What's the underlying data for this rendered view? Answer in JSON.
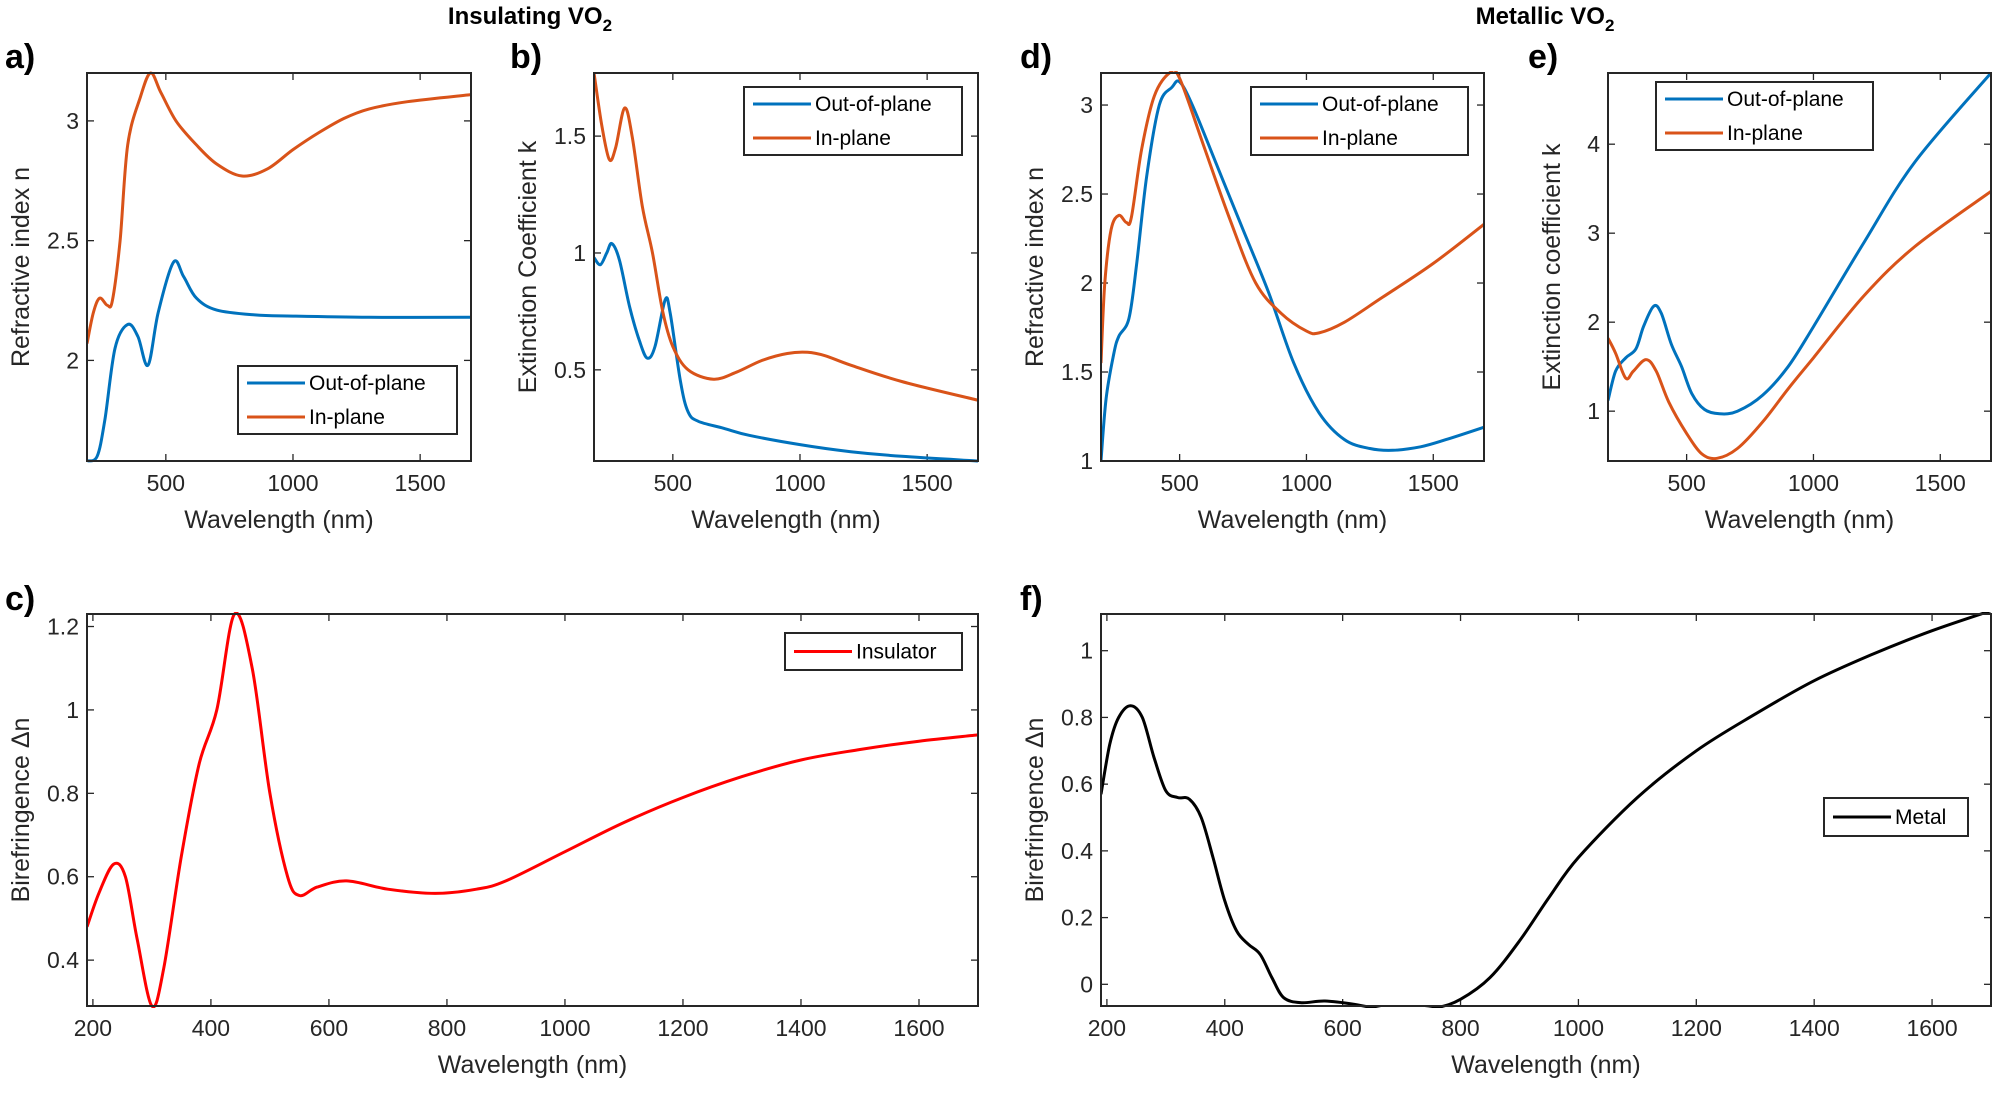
{
  "group_titles": [
    {
      "text": "Insulating VO",
      "sub": "2"
    },
    {
      "text": "Metallic VO",
      "sub": "2"
    }
  ],
  "colors": {
    "out_of_plane": "#0072BD",
    "in_plane": "#D95319",
    "insulator": "#FF0000",
    "metal": "#000000"
  },
  "chart_data": [
    {
      "panel": "a)",
      "type": "line",
      "xlabel": "Wavelength (nm)",
      "ylabel": "Refractive index n",
      "xlim": [
        190,
        1700
      ],
      "ylim": [
        1.58,
        3.2
      ],
      "xticks": [
        500,
        1000,
        1500
      ],
      "xtick_labels": [
        "500",
        "1000",
        "1500"
      ],
      "yticks": [
        2,
        2.5,
        3
      ],
      "ytick_labels": [
        "2",
        "2.5",
        "3"
      ],
      "legend": "bottom-right",
      "grid": false,
      "series": [
        {
          "name": "Out-of-plane",
          "color": "#0072BD",
          "x": [
            190,
            230,
            260,
            300,
            350,
            390,
            430,
            470,
            530,
            570,
            620,
            700,
            850,
            1000,
            1300,
            1700
          ],
          "y": [
            1.58,
            1.6,
            1.75,
            2.05,
            2.15,
            2.1,
            1.98,
            2.2,
            2.41,
            2.35,
            2.26,
            2.21,
            2.19,
            2.185,
            2.18,
            2.18
          ]
        },
        {
          "name": "In-plane",
          "color": "#D95319",
          "x": [
            190,
            215,
            240,
            270,
            290,
            320,
            350,
            400,
            440,
            480,
            540,
            620,
            700,
            800,
            900,
            1000,
            1100,
            1200,
            1300,
            1450,
            1700
          ],
          "y": [
            2.07,
            2.2,
            2.26,
            2.23,
            2.25,
            2.5,
            2.9,
            3.1,
            3.2,
            3.12,
            3.0,
            2.9,
            2.82,
            2.77,
            2.8,
            2.88,
            2.95,
            3.01,
            3.05,
            3.08,
            3.11
          ]
        }
      ]
    },
    {
      "panel": "b)",
      "type": "line",
      "xlabel": "Wavelength (nm)",
      "ylabel": "Extinction Coefficient k",
      "xlim": [
        190,
        1700
      ],
      "ylim": [
        0.11,
        1.77
      ],
      "xticks": [
        500,
        1000,
        1500
      ],
      "xtick_labels": [
        "500",
        "1000",
        "1500"
      ],
      "yticks": [
        0.5,
        1,
        1.5
      ],
      "ytick_labels": [
        "0.5",
        "1",
        "1.5"
      ],
      "legend": "top-right",
      "grid": false,
      "series": [
        {
          "name": "Out-of-plane",
          "color": "#0072BD",
          "x": [
            190,
            215,
            240,
            260,
            290,
            330,
            370,
            400,
            430,
            470,
            490,
            530,
            560,
            600,
            700,
            800,
            1000,
            1200,
            1400,
            1700
          ],
          "y": [
            0.98,
            0.95,
            1.0,
            1.04,
            0.97,
            0.77,
            0.62,
            0.55,
            0.6,
            0.8,
            0.74,
            0.45,
            0.32,
            0.28,
            0.25,
            0.22,
            0.18,
            0.15,
            0.13,
            0.11
          ]
        },
        {
          "name": "In-plane",
          "color": "#D95319",
          "x": [
            190,
            220,
            250,
            275,
            310,
            340,
            380,
            420,
            460,
            500,
            560,
            660,
            750,
            850,
            950,
            1030,
            1100,
            1200,
            1400,
            1700
          ],
          "y": [
            1.77,
            1.55,
            1.4,
            1.45,
            1.62,
            1.5,
            1.2,
            1.0,
            0.75,
            0.6,
            0.5,
            0.46,
            0.49,
            0.54,
            0.57,
            0.575,
            0.56,
            0.52,
            0.45,
            0.37
          ]
        }
      ]
    },
    {
      "panel": "c)",
      "type": "line",
      "xlabel": "Wavelength (nm)",
      "ylabel": "Birefringence Δn",
      "xlim": [
        190,
        1700
      ],
      "ylim": [
        0.29,
        1.23
      ],
      "xticks": [
        200,
        400,
        600,
        800,
        1000,
        1200,
        1400,
        1600
      ],
      "xtick_labels": [
        "200",
        "400",
        "600",
        "800",
        "1000",
        "1200",
        "1400",
        "1600"
      ],
      "yticks": [
        0.4,
        0.6,
        0.8,
        1,
        1.2
      ],
      "ytick_labels": [
        "0.4",
        "0.6",
        "0.8",
        "1",
        "1.2"
      ],
      "legend": "top-right",
      "grid": false,
      "series": [
        {
          "name": "Insulator",
          "color": "#FF0000",
          "x": [
            190,
            210,
            235,
            255,
            275,
            300,
            320,
            350,
            380,
            410,
            440,
            470,
            500,
            530,
            550,
            580,
            630,
            700,
            780,
            850,
            900,
            1000,
            1100,
            1200,
            1300,
            1400,
            1500,
            1600,
            1700
          ],
          "y": [
            0.48,
            0.56,
            0.63,
            0.6,
            0.45,
            0.29,
            0.38,
            0.65,
            0.87,
            1.0,
            1.23,
            1.1,
            0.8,
            0.6,
            0.555,
            0.575,
            0.59,
            0.57,
            0.56,
            0.57,
            0.59,
            0.66,
            0.73,
            0.79,
            0.84,
            0.88,
            0.905,
            0.925,
            0.94
          ]
        }
      ]
    },
    {
      "panel": "d)",
      "type": "line",
      "xlabel": "Wavelength (nm)",
      "ylabel": "Refractive index n",
      "xlim": [
        190,
        1700
      ],
      "ylim": [
        1,
        3.18
      ],
      "xticks": [
        500,
        1000,
        1500
      ],
      "xtick_labels": [
        "500",
        "1000",
        "1500"
      ],
      "yticks": [
        1,
        1.5,
        2,
        2.5,
        3
      ],
      "ytick_labels": [
        "1",
        "1.5",
        "2",
        "2.5",
        "3"
      ],
      "legend": "top-right",
      "grid": false,
      "series": [
        {
          "name": "Out-of-plane",
          "color": "#0072BD",
          "x": [
            190,
            210,
            240,
            260,
            300,
            330,
            370,
            420,
            470,
            500,
            550,
            650,
            750,
            850,
            950,
            1050,
            1150,
            1250,
            1340,
            1450,
            1550,
            1700
          ],
          "y": [
            1.0,
            1.35,
            1.6,
            1.7,
            1.8,
            2.1,
            2.6,
            3.0,
            3.1,
            3.13,
            3.0,
            2.65,
            2.3,
            1.95,
            1.55,
            1.27,
            1.12,
            1.07,
            1.06,
            1.08,
            1.12,
            1.19
          ]
        },
        {
          "name": "In-plane",
          "color": "#D95319",
          "x": [
            190,
            205,
            230,
            260,
            290,
            310,
            350,
            400,
            460,
            500,
            600,
            700,
            800,
            900,
            1000,
            1050,
            1150,
            1300,
            1500,
            1700
          ],
          "y": [
            1.55,
            2.0,
            2.3,
            2.38,
            2.34,
            2.37,
            2.75,
            3.05,
            3.18,
            3.15,
            2.75,
            2.35,
            2.0,
            1.83,
            1.73,
            1.72,
            1.78,
            1.92,
            2.11,
            2.33
          ]
        }
      ]
    },
    {
      "panel": "e)",
      "type": "line",
      "xlabel": "Wavelength (nm)",
      "ylabel": "Extinction coefficient k",
      "xlim": [
        190,
        1700
      ],
      "ylim": [
        0.44,
        4.8
      ],
      "xticks": [
        500,
        1000,
        1500
      ],
      "xtick_labels": [
        "500",
        "1000",
        "1500"
      ],
      "yticks": [
        1,
        2,
        3,
        4
      ],
      "ytick_labels": [
        "1",
        "2",
        "3",
        "4"
      ],
      "legend": "top",
      "grid": false,
      "series": [
        {
          "name": "Out-of-plane",
          "color": "#0072BD",
          "x": [
            190,
            220,
            260,
            300,
            330,
            370,
            400,
            440,
            480,
            520,
            570,
            630,
            700,
            800,
            900,
            1000,
            1200,
            1400,
            1700
          ],
          "y": [
            1.12,
            1.45,
            1.6,
            1.7,
            1.95,
            2.18,
            2.1,
            1.75,
            1.5,
            1.2,
            1.02,
            0.97,
            1.0,
            1.18,
            1.5,
            1.95,
            2.9,
            3.8,
            4.8
          ]
        },
        {
          "name": "In-plane",
          "color": "#D95319",
          "x": [
            190,
            220,
            260,
            290,
            340,
            380,
            430,
            500,
            560,
            620,
            700,
            800,
            900,
            1000,
            1200,
            1400,
            1700
          ],
          "y": [
            1.82,
            1.65,
            1.37,
            1.45,
            1.58,
            1.45,
            1.1,
            0.75,
            0.52,
            0.47,
            0.58,
            0.88,
            1.25,
            1.6,
            2.3,
            2.85,
            3.47
          ]
        }
      ]
    },
    {
      "panel": "f)",
      "type": "line",
      "xlabel": "Wavelength (nm)",
      "ylabel": "Birefringence Δn",
      "xlim": [
        190,
        1700
      ],
      "ylim": [
        -0.065,
        1.11
      ],
      "xticks": [
        200,
        400,
        600,
        800,
        1000,
        1200,
        1400,
        1600
      ],
      "xtick_labels": [
        "200",
        "400",
        "600",
        "800",
        "1000",
        "1200",
        "1400",
        "1600"
      ],
      "yticks": [
        0,
        0.2,
        0.4,
        0.6,
        0.8,
        1
      ],
      "ytick_labels": [
        "0",
        "0.2",
        "0.4",
        "0.6",
        "0.8",
        "1"
      ],
      "legend": "right",
      "grid": false,
      "series": [
        {
          "name": "Metal",
          "color": "#000000",
          "x": [
            190,
            205,
            220,
            240,
            260,
            280,
            300,
            320,
            340,
            360,
            380,
            400,
            420,
            440,
            460,
            480,
            500,
            530,
            570,
            620,
            680,
            710,
            760,
            800,
            850,
            900,
            950,
            1000,
            1100,
            1200,
            1300,
            1400,
            1500,
            1600,
            1700
          ],
          "y": [
            0.57,
            0.72,
            0.8,
            0.835,
            0.8,
            0.68,
            0.58,
            0.56,
            0.555,
            0.5,
            0.38,
            0.25,
            0.16,
            0.12,
            0.09,
            0.02,
            -0.04,
            -0.055,
            -0.05,
            -0.06,
            -0.08,
            -0.08,
            -0.07,
            -0.045,
            0.02,
            0.13,
            0.26,
            0.38,
            0.56,
            0.7,
            0.81,
            0.91,
            0.99,
            1.06,
            1.12
          ]
        }
      ]
    }
  ]
}
